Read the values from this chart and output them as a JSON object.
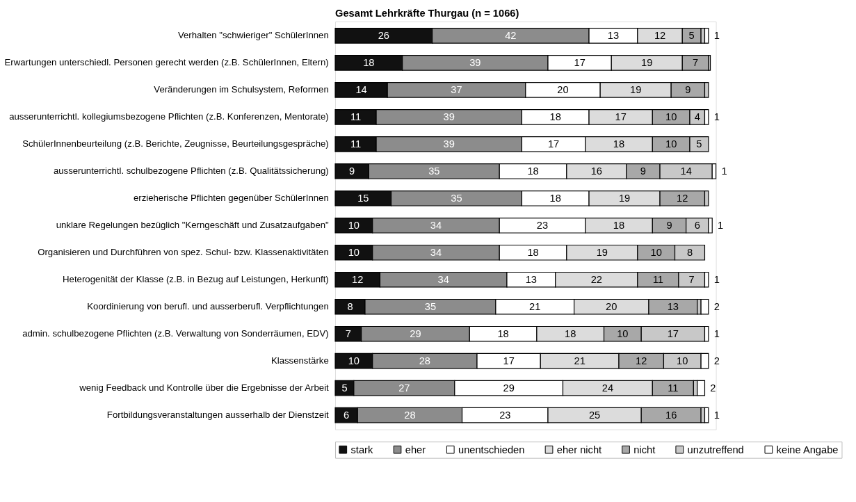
{
  "chart_data": {
    "type": "bar",
    "orientation": "horizontal",
    "stacked": true,
    "title": "Gesamt Lehrkräfte Thurgau (n = 1066)",
    "legend": "bottom",
    "categories": [
      "Verhalten \"schwieriger\" SchülerInnen",
      "Erwartungen unterschiedl. Personen gerecht werden (z.B. SchülerInnen, Eltern)",
      "Veränderungen im Schulsystem, Reformen",
      "ausserunterrichtl. kollegiumsbezogene Pflichten (z.B. Konferenzen, Mentorate)",
      "SchülerInnenbeurteilung (z.B. Berichte, Zeugnisse, Beurteilungsgespräche)",
      "ausserunterrichtl.  schulbezogene Pflichten (z.B. Qualitätssicherung)",
      "erzieherische Pflichten gegenüber SchülerInnen",
      "unklare Regelungen bezüglich \"Kerngeschäft und Zusatzaufgaben\"",
      "Organisieren und Durchführen von spez. Schul- bzw. Klassenaktivitäten",
      "Heterogenität der Klasse (z.B. in Bezug auf Leistungen, Herkunft)",
      "Koordinierung von berufl. und ausserberufl. Verpflichtungen",
      "admin. schulbezogene Pflichten (z.B. Verwaltung von Sonderräumen, EDV)",
      "Klassenstärke",
      "wenig Feedback und Kontrolle über die Ergebnisse der Arbeit",
      "Fortbildungsveranstaltungen ausserhalb der Dienstzeit"
    ],
    "series": [
      {
        "name": "stark",
        "color": "#111111",
        "values": [
          26,
          18,
          14,
          11,
          11,
          9,
          15,
          10,
          10,
          12,
          8,
          7,
          10,
          5,
          6
        ],
        "value_labels": [
          "26",
          "18",
          "14",
          "11",
          "11",
          "9",
          "15",
          "10",
          "10",
          "12",
          "8",
          "7",
          "10",
          "5",
          "6"
        ]
      },
      {
        "name": "eher",
        "color": "#8c8c8c",
        "values": [
          42,
          39,
          37,
          39,
          39,
          35,
          35,
          34,
          34,
          34,
          35,
          29,
          28,
          27,
          28
        ],
        "value_labels": [
          "42",
          "39",
          "37",
          "39",
          "39",
          "35",
          "35",
          "34",
          "34",
          "34",
          "35",
          "29",
          "28",
          "27",
          "28"
        ]
      },
      {
        "name": "unentschieden",
        "color": "#ffffff",
        "values": [
          13,
          17,
          20,
          18,
          17,
          18,
          18,
          23,
          18,
          13,
          21,
          18,
          17,
          29,
          23
        ],
        "value_labels": [
          "13",
          "17",
          "20",
          "18",
          "17",
          "18",
          "18",
          "23",
          "18",
          "13",
          "21",
          "18",
          "17",
          "29",
          "23"
        ]
      },
      {
        "name": "eher nicht",
        "color": "#dcdcdc",
        "values": [
          12,
          19,
          19,
          17,
          18,
          16,
          19,
          18,
          19,
          22,
          20,
          18,
          21,
          24,
          25
        ],
        "value_labels": [
          "12",
          "19",
          "19",
          "17",
          "18",
          "16",
          "19",
          "18",
          "19",
          "22",
          "20",
          "18",
          "21",
          "24",
          "25"
        ]
      },
      {
        "name": "nicht",
        "color": "#a8a8a8",
        "values": [
          5,
          7,
          9,
          10,
          10,
          9,
          12,
          9,
          10,
          11,
          13,
          10,
          12,
          11,
          16
        ],
        "value_labels": [
          "5",
          "7",
          "9",
          "10",
          "10",
          "9",
          "12",
          "9",
          "10",
          "11",
          "13",
          "10",
          "12",
          "11",
          "16"
        ]
      },
      {
        "name": "unzutreffend",
        "color": "#c8c8c8",
        "values": [
          1,
          0.5,
          1,
          4,
          5,
          14,
          1,
          6,
          8,
          7,
          1,
          17,
          10,
          1,
          1
        ],
        "value_labels": [
          null,
          null,
          null,
          "4",
          "5",
          "14",
          null,
          "6",
          "8",
          "7",
          null,
          "17",
          "10",
          null,
          null
        ]
      },
      {
        "name": "keine Angabe",
        "color": "#ffffff",
        "values": [
          1,
          null,
          null,
          1,
          null,
          1,
          null,
          1,
          null,
          1,
          2,
          1,
          2,
          2,
          1
        ],
        "value_labels": [
          "1",
          null,
          null,
          "1",
          null,
          "1",
          null,
          "1",
          null,
          "1",
          "2",
          "1",
          "2",
          "2",
          "1"
        ]
      }
    ]
  }
}
